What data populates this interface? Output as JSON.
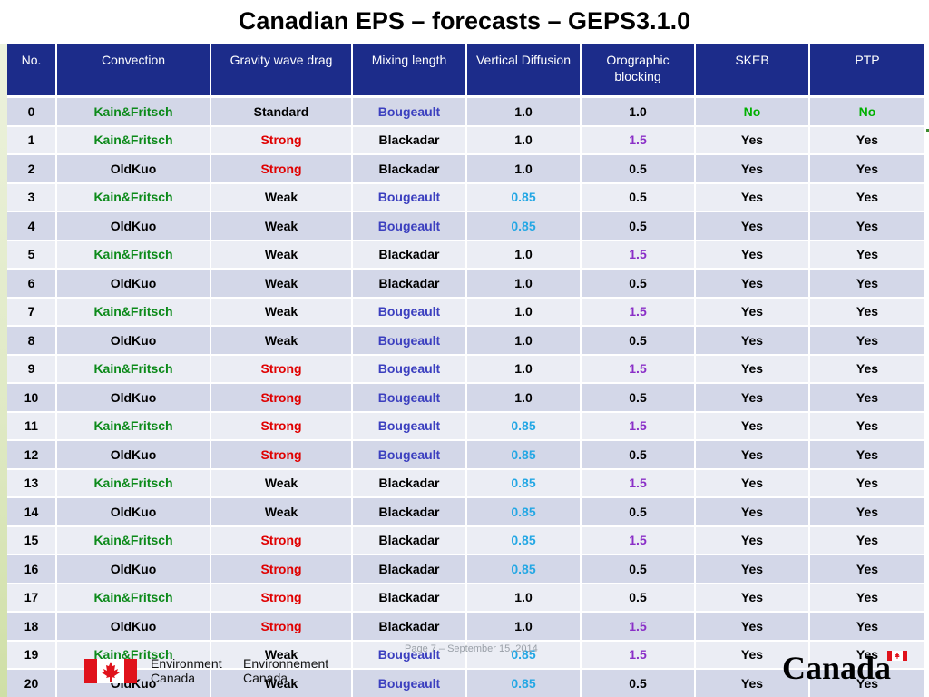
{
  "title": "Canadian EPS – forecasts – GEPS3.1.0",
  "columns": [
    "No.",
    "Convection",
    "Gravity wave drag",
    "Mixing length",
    "Vertical Diffusion",
    "Orographic blocking",
    "SKEB",
    "PTP"
  ],
  "rows": [
    [
      "0",
      "Kain&Fritsch",
      "Standard",
      "Bougeault",
      "1.0",
      "1.0",
      "No",
      "No"
    ],
    [
      "1",
      "Kain&Fritsch",
      "Strong",
      "Blackadar",
      "1.0",
      "1.5",
      "Yes",
      "Yes"
    ],
    [
      "2",
      "OldKuo",
      "Strong",
      "Blackadar",
      "1.0",
      "0.5",
      "Yes",
      "Yes"
    ],
    [
      "3",
      "Kain&Fritsch",
      "Weak",
      "Bougeault",
      "0.85",
      "0.5",
      "Yes",
      "Yes"
    ],
    [
      "4",
      "OldKuo",
      "Weak",
      "Bougeault",
      "0.85",
      "0.5",
      "Yes",
      "Yes"
    ],
    [
      "5",
      "Kain&Fritsch",
      "Weak",
      "Blackadar",
      "1.0",
      "1.5",
      "Yes",
      "Yes"
    ],
    [
      "6",
      "OldKuo",
      "Weak",
      "Blackadar",
      "1.0",
      "0.5",
      "Yes",
      "Yes"
    ],
    [
      "7",
      "Kain&Fritsch",
      "Weak",
      "Bougeault",
      "1.0",
      "1.5",
      "Yes",
      "Yes"
    ],
    [
      "8",
      "OldKuo",
      "Weak",
      "Bougeault",
      "1.0",
      "0.5",
      "Yes",
      "Yes"
    ],
    [
      "9",
      "Kain&Fritsch",
      "Strong",
      "Bougeault",
      "1.0",
      "1.5",
      "Yes",
      "Yes"
    ],
    [
      "10",
      "OldKuo",
      "Strong",
      "Bougeault",
      "1.0",
      "0.5",
      "Yes",
      "Yes"
    ],
    [
      "11",
      "Kain&Fritsch",
      "Strong",
      "Bougeault",
      "0.85",
      "1.5",
      "Yes",
      "Yes"
    ],
    [
      "12",
      "OldKuo",
      "Strong",
      "Bougeault",
      "0.85",
      "0.5",
      "Yes",
      "Yes"
    ],
    [
      "13",
      "Kain&Fritsch",
      "Weak",
      "Blackadar",
      "0.85",
      "1.5",
      "Yes",
      "Yes"
    ],
    [
      "14",
      "OldKuo",
      "Weak",
      "Blackadar",
      "0.85",
      "0.5",
      "Yes",
      "Yes"
    ],
    [
      "15",
      "Kain&Fritsch",
      "Strong",
      "Blackadar",
      "0.85",
      "1.5",
      "Yes",
      "Yes"
    ],
    [
      "16",
      "OldKuo",
      "Strong",
      "Blackadar",
      "0.85",
      "0.5",
      "Yes",
      "Yes"
    ],
    [
      "17",
      "Kain&Fritsch",
      "Strong",
      "Blackadar",
      "1.0",
      "0.5",
      "Yes",
      "Yes"
    ],
    [
      "18",
      "OldKuo",
      "Strong",
      "Blackadar",
      "1.0",
      "1.5",
      "Yes",
      "Yes"
    ],
    [
      "19",
      "Kain&Fritsch",
      "Weak",
      "Bougeault",
      "0.85",
      "1.5",
      "Yes",
      "Yes"
    ],
    [
      "20",
      "OldKuo",
      "Weak",
      "Bougeault",
      "0.85",
      "0.5",
      "Yes",
      "Yes"
    ]
  ],
  "colors": {
    "header_bg": "#1c2c8a",
    "row_odd": "#d3d7e8",
    "row_even": "#ebedf4",
    "Kain&Fritsch": "#0c8a1a",
    "Strong": "#e00000",
    "Bougeault": "#3b3fbf",
    "0.85": "#23a7e4",
    "1.5": "#8a2fc7",
    "No": "#00b000"
  },
  "footer": {
    "date_text": "Page 7 – September 15, 2014",
    "dept_en_line1": "Environment",
    "dept_en_line2": "Canada",
    "dept_fr_line1": "Environnement",
    "dept_fr_line2": "Canada",
    "wordmark": "Canada"
  }
}
